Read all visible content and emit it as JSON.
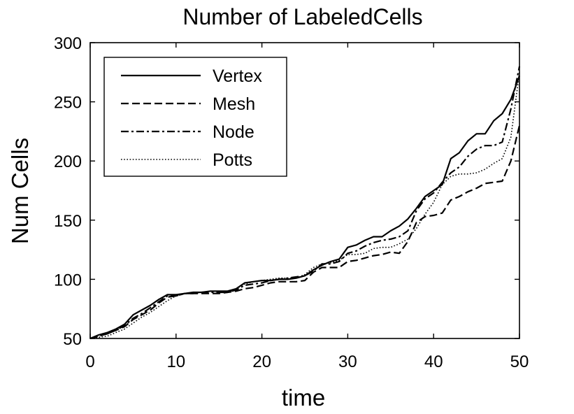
{
  "chart_data": {
    "type": "line",
    "title": "Number of LabeledCells",
    "xlabel": "time",
    "ylabel": "Num Cells",
    "xlim": [
      0,
      50
    ],
    "ylim": [
      50,
      300
    ],
    "xticks": [
      0,
      10,
      20,
      30,
      40,
      50
    ],
    "yticks": [
      50,
      100,
      150,
      200,
      250,
      300
    ],
    "xtick_labels": [
      "0",
      "10",
      "20",
      "30",
      "40",
      "50"
    ],
    "ytick_labels": [
      "50",
      "100",
      "150",
      "200",
      "250",
      "300"
    ],
    "grid": false,
    "legend": "top-left",
    "x": [
      0,
      1,
      2,
      3,
      4,
      5,
      6,
      7,
      8,
      9,
      10,
      11,
      12,
      13,
      14,
      15,
      16,
      17,
      18,
      19,
      20,
      21,
      22,
      23,
      24,
      25,
      26,
      27,
      28,
      29,
      30,
      31,
      32,
      33,
      34,
      35,
      36,
      37,
      38,
      39,
      40,
      41,
      42,
      43,
      44,
      45,
      46,
      47,
      48,
      49,
      50
    ],
    "series": [
      {
        "name": "Vertex",
        "dash": "solid",
        "values": [
          50,
          53,
          55,
          58,
          62,
          70,
          74,
          78,
          83,
          87,
          87,
          88,
          89,
          89,
          90,
          90,
          90,
          92,
          97,
          98,
          99,
          99,
          100,
          100,
          101,
          103,
          108,
          112,
          115,
          117,
          127,
          129,
          133,
          136,
          136,
          141,
          145,
          151,
          160,
          170,
          175,
          180,
          202,
          207,
          217,
          223,
          223,
          234,
          240,
          252,
          272
        ]
      },
      {
        "name": "Mesh",
        "dash": "dashed",
        "values": [
          50,
          52,
          54,
          57,
          60,
          66,
          70,
          74,
          80,
          85,
          86,
          88,
          88,
          88,
          88,
          88,
          89,
          90,
          92,
          93,
          95,
          97,
          98,
          98,
          98,
          99,
          106,
          110,
          110,
          110,
          115,
          116,
          118,
          120,
          121,
          123,
          122,
          132,
          148,
          153,
          154,
          156,
          167,
          170,
          174,
          177,
          181,
          182,
          183,
          200,
          230
        ]
      },
      {
        "name": "Node",
        "dash": "dashdot",
        "values": [
          50,
          52,
          54,
          57,
          61,
          67,
          71,
          76,
          81,
          86,
          86,
          88,
          88,
          89,
          89,
          89,
          89,
          91,
          95,
          96,
          97,
          99,
          100,
          101,
          102,
          103,
          107,
          113,
          113,
          115,
          122,
          124,
          128,
          131,
          133,
          134,
          136,
          141,
          158,
          168,
          173,
          182,
          190,
          195,
          204,
          210,
          213,
          213,
          216,
          244,
          280
        ]
      },
      {
        "name": "Potts",
        "dash": "dotted",
        "values": [
          50,
          51,
          52,
          55,
          58,
          63,
          68,
          72,
          77,
          82,
          86,
          88,
          89,
          89,
          90,
          90,
          89,
          92,
          96,
          98,
          99,
          100,
          101,
          101,
          101,
          104,
          110,
          113,
          114,
          116,
          121,
          121,
          122,
          126,
          127,
          127,
          130,
          134,
          143,
          155,
          165,
          180,
          187,
          189,
          189,
          190,
          193,
          198,
          202,
          220,
          275
        ]
      }
    ]
  }
}
